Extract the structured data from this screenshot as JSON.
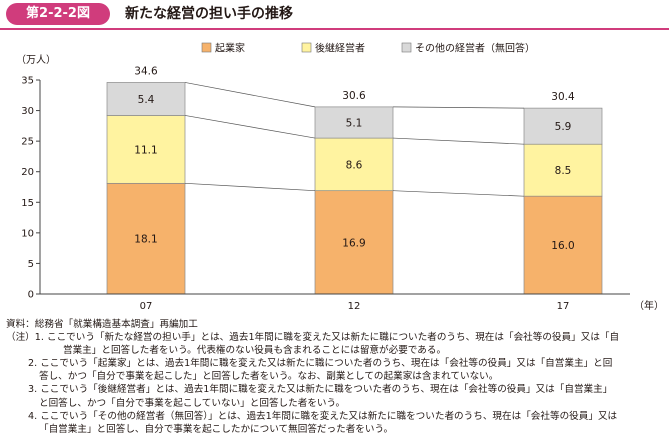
{
  "header": {
    "figure_number": "第2-2-2図",
    "title": "新たな経営の担い手の推移",
    "accent_color": "#d03c7c"
  },
  "chart_data": {
    "type": "bar",
    "stacked": true,
    "categories": [
      "07",
      "12",
      "17"
    ],
    "ylabel": "（万人）",
    "xlabel": "（年）",
    "ylim": [
      0,
      35
    ],
    "yticks": [
      0,
      5,
      10,
      15,
      20,
      25,
      30,
      35
    ],
    "grid": false,
    "legend_position": "top",
    "series": [
      {
        "name": "起業家",
        "values": [
          18.1,
          16.9,
          16.0
        ],
        "color": "#f6b26b"
      },
      {
        "name": "後継経営者",
        "values": [
          11.1,
          8.6,
          8.5
        ],
        "color": "#fff3a0"
      },
      {
        "name": "その他の経営者（無回答）",
        "values": [
          5.4,
          5.1,
          5.9
        ],
        "color": "#d9d9d9"
      }
    ],
    "totals": [
      34.6,
      30.6,
      30.4
    ]
  },
  "notes": {
    "source": "資料：総務省「就業構造基本調査」再編加工",
    "items": [
      {
        "lines": [
          "（注）1. ここでいう「新たな経営の担い手」とは、過去1年間に職を変えた又は新たに職についた者のうち、現在は「会社等の役員」又は「自",
          "営業主」と回答した者をいう。代表権のない役員も含まれることには留意が必要である。"
        ]
      },
      {
        "lines": [
          "2. ここでいう「起業家」とは、過去1年間に職を変えた又は新たに職についた者のうち、現在は「会社等の役員」又は「自営業主」と回",
          "答し、かつ「自分で事業を起こした」と回答した者をいう。なお、副業としての起業家は含まれていない。"
        ]
      },
      {
        "lines": [
          "3. ここでいう「後継経営者」とは、過去1年間に職を変えた又は新たに職をついた者のうち、現在は「会社等の役員」又は「自営業主」",
          "と回答し、かつ「自分で事業を起こしていない」と回答した者をいう。"
        ]
      },
      {
        "lines": [
          "4. ここでいう「その他の経営者（無回答）」とは、過去1年間に職を変えた又は新たに職をついた者のうち、現在は「会社等の役員」又は",
          "「自営業主」と回答し、自分で事業を起こしたかについて無回答だった者をいう。"
        ]
      }
    ]
  }
}
